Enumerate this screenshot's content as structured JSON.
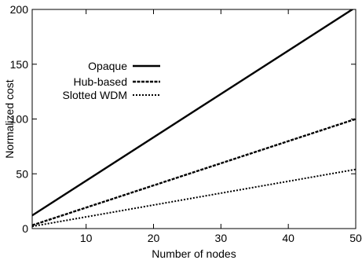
{
  "chart_data": {
    "type": "line",
    "title": "",
    "xlabel": "Number of nodes",
    "ylabel": "Normalized cost",
    "xlim": [
      2,
      50
    ],
    "ylim": [
      0,
      200
    ],
    "xticks": [
      10,
      20,
      30,
      40,
      50
    ],
    "yticks": [
      0,
      50,
      100,
      150,
      200
    ],
    "grid": false,
    "legend": "upper-left",
    "series": [
      {
        "name": "Opaque",
        "style": "solid",
        "color": "#000000",
        "x": [
          2,
          50
        ],
        "y": [
          12,
          202
        ]
      },
      {
        "name": "Hub-based",
        "style": "dashed",
        "color": "#000000",
        "x": [
          2,
          50
        ],
        "y": [
          3,
          100
        ]
      },
      {
        "name": "Slotted WDM",
        "style": "dotted",
        "color": "#000000",
        "x": [
          2,
          50
        ],
        "y": [
          2,
          54
        ]
      }
    ]
  }
}
